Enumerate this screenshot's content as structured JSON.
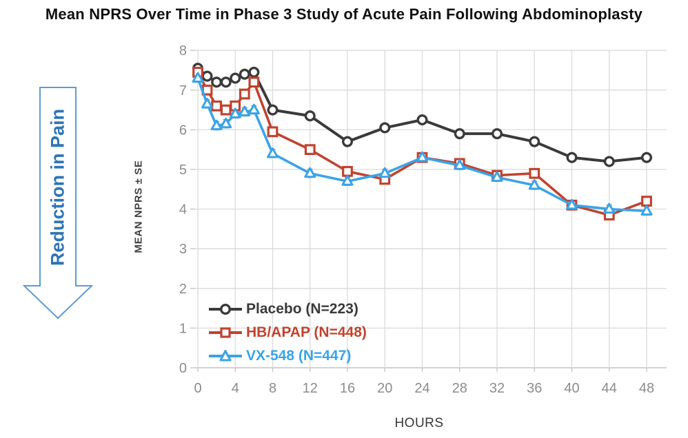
{
  "title": "Mean NPRS Over Time in Phase 3 Study of Acute Pain Following Abdominoplasty",
  "annotation_arrow": {
    "label": "Reduction in Pain",
    "outline_color": "#5b9bd5",
    "text_color": "#2e75b6"
  },
  "chart_data": {
    "type": "line",
    "title": "Mean NPRS Over Time in Phase 3 Study of Acute Pain Following Abdominoplasty",
    "xlabel": "HOURS",
    "ylabel": "MEAN NPRS ± SE",
    "x": [
      0,
      1,
      2,
      3,
      4,
      5,
      6,
      8,
      12,
      16,
      20,
      24,
      28,
      32,
      36,
      40,
      44,
      48
    ],
    "x_ticks": [
      0,
      4,
      8,
      12,
      16,
      20,
      24,
      28,
      32,
      36,
      40,
      44,
      48
    ],
    "y_ticks": [
      0,
      1,
      2,
      3,
      4,
      5,
      6,
      7,
      8
    ],
    "xlim": [
      0,
      48
    ],
    "ylim": [
      0,
      8
    ],
    "grid": true,
    "error_bars": "SE",
    "legend_position": "inside-bottom-left",
    "series": [
      {
        "name": "Placebo (N=223)",
        "marker": "circle",
        "color": "#3a3a3a",
        "values": [
          7.55,
          7.35,
          7.2,
          7.2,
          7.3,
          7.4,
          7.45,
          6.5,
          6.35,
          5.7,
          6.05,
          6.25,
          5.9,
          5.9,
          5.7,
          5.3,
          5.2,
          5.3
        ]
      },
      {
        "name": "HB/APAP (N=448)",
        "marker": "square",
        "color": "#c0432f",
        "values": [
          7.45,
          7.0,
          6.6,
          6.5,
          6.6,
          6.9,
          7.2,
          5.95,
          5.5,
          4.95,
          4.75,
          5.3,
          5.15,
          4.85,
          4.9,
          4.1,
          3.85,
          4.2
        ]
      },
      {
        "name": "VX-548 (N=447)",
        "marker": "triangle",
        "color": "#3aa3e8",
        "values": [
          7.3,
          6.65,
          6.1,
          6.15,
          6.4,
          6.45,
          6.5,
          5.4,
          4.9,
          4.7,
          4.9,
          5.3,
          5.1,
          4.8,
          4.6,
          4.1,
          4.0,
          3.95
        ]
      }
    ]
  },
  "style_colors": {
    "gridline": "#dadada",
    "axis_line": "#c2c2c2",
    "tick_text": "#8c8c8c",
    "error_bar": "#909090"
  }
}
